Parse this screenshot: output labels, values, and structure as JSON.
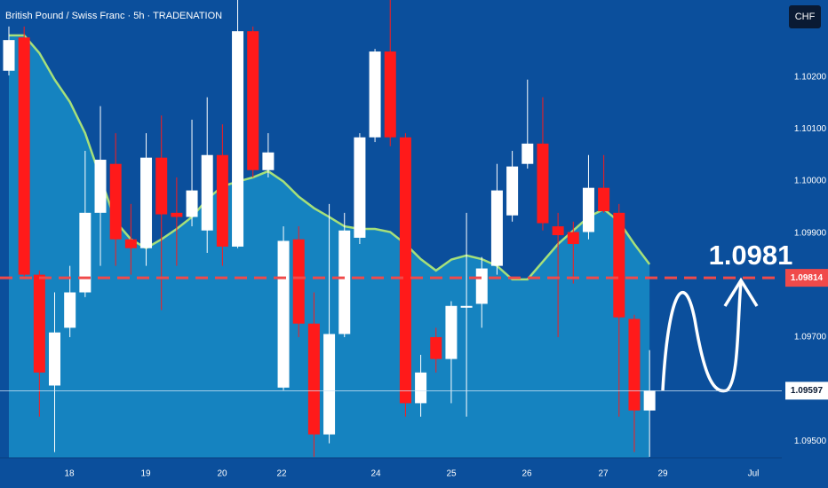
{
  "chart_data": {
    "type": "candlestick",
    "title": "British Pound / Swiss Franc · 5h · TRADENATION",
    "currency_button": "CHF",
    "annotation": "1.0981",
    "open": [
      1.10212,
      1.10276,
      1.0982,
      1.09607,
      1.09718,
      1.09786,
      1.09939,
      1.10033,
      1.09888,
      1.09871,
      1.10045,
      1.09939,
      1.09931,
      1.09905,
      1.1005,
      1.09874,
      1.10288,
      1.10021,
      1.09603,
      1.09888,
      1.09726,
      1.09513,
      1.09706,
      1.09891,
      1.10084,
      1.10249,
      1.10084,
      1.09573,
      1.097,
      1.09658,
      1.09757,
      1.09764,
      1.09837,
      1.09934,
      1.10033,
      1.10072,
      1.09913,
      1.09902,
      1.09902,
      1.09987,
      1.09939,
      1.09735,
      1.09559
    ],
    "high": [
      1.10297,
      1.10297,
      1.09828,
      1.09786,
      1.09837,
      1.10058,
      1.10144,
      1.10092,
      1.09956,
      1.10092,
      1.10126,
      1.10007,
      1.10118,
      1.10161,
      1.10109,
      1.10348,
      1.10297,
      1.10092,
      1.09913,
      1.09913,
      1.09786,
      1.09956,
      1.09939,
      1.10092,
      1.10254,
      1.10348,
      1.10092,
      1.09666,
      1.09718,
      1.09769,
      1.09939,
      1.09854,
      1.10033,
      1.10058,
      1.10195,
      1.10161,
      1.09939,
      1.09922,
      1.1005,
      1.1005,
      1.09956,
      1.09743,
      1.09675
    ],
    "low": [
      1.10203,
      1.09811,
      1.09547,
      1.09479,
      1.097,
      1.09777,
      1.09837,
      1.09837,
      1.0982,
      1.09837,
      1.09752,
      1.09837,
      1.09913,
      1.09862,
      1.09837,
      1.09871,
      1.10007,
      1.10007,
      1.09598,
      1.097,
      1.0947,
      1.09496,
      1.097,
      1.09879,
      1.10075,
      1.10067,
      1.09547,
      1.09547,
      1.09632,
      1.09573,
      1.09547,
      1.09718,
      1.0982,
      1.09922,
      1.10024,
      1.09905,
      1.097,
      1.09803,
      1.09888,
      1.09939,
      1.09547,
      1.09479,
      1.0947
    ],
    "close": [
      1.10271,
      1.0982,
      1.09632,
      1.09709,
      1.09786,
      1.09939,
      1.10041,
      1.09888,
      1.09871,
      1.10045,
      1.09936,
      1.09931,
      1.09982,
      1.1005,
      1.09874,
      1.10288,
      1.10021,
      1.10055,
      1.09885,
      1.09726,
      1.09513,
      1.09706,
      1.09905,
      1.10084,
      1.10249,
      1.10084,
      1.09573,
      1.09632,
      1.09658,
      1.0976,
      1.0976,
      1.09832,
      1.09982,
      1.10028,
      1.10072,
      1.09919,
      1.09896,
      1.09879,
      1.09987,
      1.09942,
      1.09738,
      1.09559,
      1.09597
    ],
    "moving_average": {
      "color": "#a6e07a",
      "values": [
        1.1028,
        1.1028,
        1.10246,
        1.10195,
        1.10152,
        1.10092,
        1.10007,
        1.09922,
        1.09888,
        1.09871,
        1.09888,
        1.09908,
        1.09931,
        1.09965,
        1.0999,
        1.09999,
        1.10007,
        1.10019,
        1.09999,
        1.0997,
        1.09948,
        1.09931,
        1.09913,
        1.09908,
        1.09908,
        1.09902,
        1.09879,
        1.0985,
        1.09828,
        1.09849,
        1.09857,
        1.0985,
        1.09837,
        1.09811,
        1.09811,
        1.09845,
        1.09879,
        1.09905,
        1.09931,
        1.09946,
        1.09922,
        1.09879,
        1.0984
      ]
    },
    "up_color": "#ffffff",
    "down_color": "#ff1a1a",
    "ylim": [
      1.09468,
      1.10348
    ],
    "yticks": [
      {
        "value": 1.102,
        "label": "1.10200"
      },
      {
        "value": 1.101,
        "label": "1.10100"
      },
      {
        "value": 1.1,
        "label": "1.10000"
      },
      {
        "value": 1.099,
        "label": "1.09900"
      },
      {
        "value": 1.097,
        "label": "1.09700"
      },
      {
        "value": 1.095,
        "label": "1.09500"
      }
    ],
    "x_labels": [
      "18",
      "19",
      "20",
      "22",
      "24",
      "25",
      "26",
      "27",
      "29",
      "Jul"
    ],
    "target_line": {
      "value": 1.09814,
      "label": "1.09814",
      "color": "#f04a4a"
    },
    "last_price": {
      "value": 1.09597,
      "label": "1.09597"
    }
  }
}
